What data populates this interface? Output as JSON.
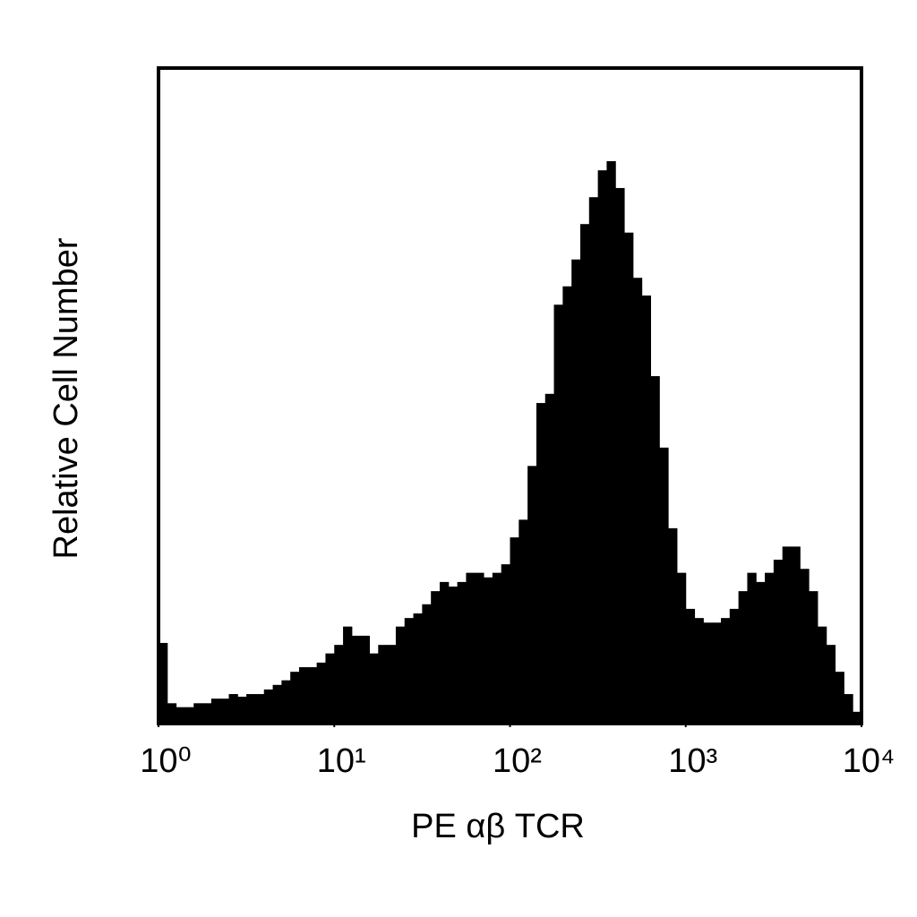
{
  "chart_data": {
    "type": "histogram",
    "x_label": "PE αβ TCR",
    "y_label": "Relative Cell Number",
    "xscale": "log",
    "color": "#000000",
    "xlim": [
      1,
      10000
    ],
    "ylim": [
      0,
      100
    ],
    "xticks": [
      {
        "value": 1,
        "label": "10⁰"
      },
      {
        "value": 10,
        "label": "10¹"
      },
      {
        "value": 100,
        "label": "10²"
      },
      {
        "value": 1000,
        "label": "10³"
      },
      {
        "value": 10000,
        "label": "10⁴"
      }
    ],
    "bins": [
      1,
      1.122,
      1.259,
      1.413,
      1.585,
      1.778,
      1.995,
      2.239,
      2.512,
      2.818,
      3.162,
      3.548,
      3.981,
      4.467,
      5.012,
      5.623,
      6.31,
      7.079,
      7.943,
      8.913,
      10,
      11.22,
      12.59,
      14.13,
      15.85,
      17.78,
      19.95,
      22.39,
      25.12,
      28.18,
      31.62,
      35.48,
      39.81,
      44.67,
      50.12,
      56.23,
      63.1,
      70.79,
      79.43,
      89.13,
      100,
      112.2,
      125.9,
      141.3,
      158.5,
      177.8,
      199.5,
      223.9,
      251.2,
      281.8,
      316.2,
      354.8,
      398.1,
      446.7,
      501.2,
      562.3,
      631,
      707.9,
      794.3,
      891.3,
      1000,
      1122,
      1259,
      1413,
      1585,
      1778,
      1995,
      2239,
      2512,
      2818,
      3162,
      3548,
      3981,
      4467,
      5012,
      5623,
      6310,
      7079,
      7943,
      8913,
      10000
    ],
    "counts": [
      12.3,
      3.1,
      2.5,
      2.5,
      3.1,
      3.1,
      3.8,
      3.8,
      4.5,
      4.1,
      4.5,
      4.5,
      5.2,
      5.9,
      6.6,
      7.9,
      8.6,
      8.6,
      9.3,
      10.7,
      12.0,
      14.8,
      13.4,
      13.4,
      10.7,
      12.0,
      12.0,
      14.8,
      16.1,
      16.8,
      18.2,
      20.2,
      21.6,
      20.9,
      21.6,
      23.0,
      23.0,
      22.3,
      23.0,
      24.3,
      28.4,
      31.1,
      39.3,
      48.9,
      50.3,
      63.9,
      66.7,
      70.8,
      76.2,
      80.3,
      84.4,
      85.8,
      81.7,
      74.9,
      68.0,
      65.3,
      53.0,
      42.1,
      29.8,
      23.0,
      17.5,
      16.1,
      15.4,
      15.4,
      16.1,
      17.5,
      20.2,
      23.0,
      21.6,
      23.0,
      25.0,
      27.0,
      27.0,
      23.6,
      20.2,
      14.8,
      12.0,
      7.9,
      4.5,
      1.8
    ]
  }
}
